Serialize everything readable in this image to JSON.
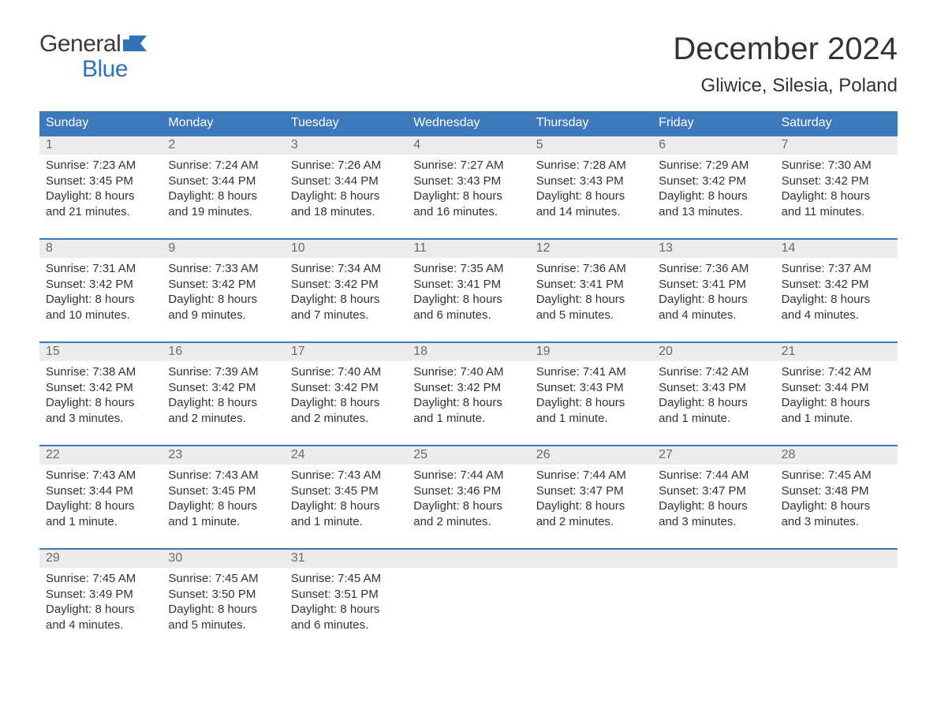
{
  "brand": {
    "top": "General",
    "bottom": "Blue"
  },
  "title": "December 2024",
  "location": "Gliwice, Silesia, Poland",
  "colors": {
    "header_bg": "#3e79bb",
    "header_text": "#ffffff",
    "daynum_bg": "#ececec",
    "daynum_text": "#6a6a6a",
    "week_border": "#3e79bb",
    "body_text": "#333333",
    "brand_blue": "#2f72b8",
    "background": "#ffffff"
  },
  "typography": {
    "title_fontsize": 40,
    "location_fontsize": 24,
    "dayheader_fontsize": 16,
    "daynum_fontsize": 16,
    "cell_fontsize": 15,
    "logo_fontsize": 30
  },
  "layout": {
    "columns": 7,
    "rows": 5
  },
  "day_labels": [
    "Sunday",
    "Monday",
    "Tuesday",
    "Wednesday",
    "Thursday",
    "Friday",
    "Saturday"
  ],
  "weeks": [
    [
      {
        "n": "1",
        "sunrise": "Sunrise: 7:23 AM",
        "sunset": "Sunset: 3:45 PM",
        "d1": "Daylight: 8 hours",
        "d2": "and 21 minutes."
      },
      {
        "n": "2",
        "sunrise": "Sunrise: 7:24 AM",
        "sunset": "Sunset: 3:44 PM",
        "d1": "Daylight: 8 hours",
        "d2": "and 19 minutes."
      },
      {
        "n": "3",
        "sunrise": "Sunrise: 7:26 AM",
        "sunset": "Sunset: 3:44 PM",
        "d1": "Daylight: 8 hours",
        "d2": "and 18 minutes."
      },
      {
        "n": "4",
        "sunrise": "Sunrise: 7:27 AM",
        "sunset": "Sunset: 3:43 PM",
        "d1": "Daylight: 8 hours",
        "d2": "and 16 minutes."
      },
      {
        "n": "5",
        "sunrise": "Sunrise: 7:28 AM",
        "sunset": "Sunset: 3:43 PM",
        "d1": "Daylight: 8 hours",
        "d2": "and 14 minutes."
      },
      {
        "n": "6",
        "sunrise": "Sunrise: 7:29 AM",
        "sunset": "Sunset: 3:42 PM",
        "d1": "Daylight: 8 hours",
        "d2": "and 13 minutes."
      },
      {
        "n": "7",
        "sunrise": "Sunrise: 7:30 AM",
        "sunset": "Sunset: 3:42 PM",
        "d1": "Daylight: 8 hours",
        "d2": "and 11 minutes."
      }
    ],
    [
      {
        "n": "8",
        "sunrise": "Sunrise: 7:31 AM",
        "sunset": "Sunset: 3:42 PM",
        "d1": "Daylight: 8 hours",
        "d2": "and 10 minutes."
      },
      {
        "n": "9",
        "sunrise": "Sunrise: 7:33 AM",
        "sunset": "Sunset: 3:42 PM",
        "d1": "Daylight: 8 hours",
        "d2": "and 9 minutes."
      },
      {
        "n": "10",
        "sunrise": "Sunrise: 7:34 AM",
        "sunset": "Sunset: 3:42 PM",
        "d1": "Daylight: 8 hours",
        "d2": "and 7 minutes."
      },
      {
        "n": "11",
        "sunrise": "Sunrise: 7:35 AM",
        "sunset": "Sunset: 3:41 PM",
        "d1": "Daylight: 8 hours",
        "d2": "and 6 minutes."
      },
      {
        "n": "12",
        "sunrise": "Sunrise: 7:36 AM",
        "sunset": "Sunset: 3:41 PM",
        "d1": "Daylight: 8 hours",
        "d2": "and 5 minutes."
      },
      {
        "n": "13",
        "sunrise": "Sunrise: 7:36 AM",
        "sunset": "Sunset: 3:41 PM",
        "d1": "Daylight: 8 hours",
        "d2": "and 4 minutes."
      },
      {
        "n": "14",
        "sunrise": "Sunrise: 7:37 AM",
        "sunset": "Sunset: 3:42 PM",
        "d1": "Daylight: 8 hours",
        "d2": "and 4 minutes."
      }
    ],
    [
      {
        "n": "15",
        "sunrise": "Sunrise: 7:38 AM",
        "sunset": "Sunset: 3:42 PM",
        "d1": "Daylight: 8 hours",
        "d2": "and 3 minutes."
      },
      {
        "n": "16",
        "sunrise": "Sunrise: 7:39 AM",
        "sunset": "Sunset: 3:42 PM",
        "d1": "Daylight: 8 hours",
        "d2": "and 2 minutes."
      },
      {
        "n": "17",
        "sunrise": "Sunrise: 7:40 AM",
        "sunset": "Sunset: 3:42 PM",
        "d1": "Daylight: 8 hours",
        "d2": "and 2 minutes."
      },
      {
        "n": "18",
        "sunrise": "Sunrise: 7:40 AM",
        "sunset": "Sunset: 3:42 PM",
        "d1": "Daylight: 8 hours",
        "d2": "and 1 minute."
      },
      {
        "n": "19",
        "sunrise": "Sunrise: 7:41 AM",
        "sunset": "Sunset: 3:43 PM",
        "d1": "Daylight: 8 hours",
        "d2": "and 1 minute."
      },
      {
        "n": "20",
        "sunrise": "Sunrise: 7:42 AM",
        "sunset": "Sunset: 3:43 PM",
        "d1": "Daylight: 8 hours",
        "d2": "and 1 minute."
      },
      {
        "n": "21",
        "sunrise": "Sunrise: 7:42 AM",
        "sunset": "Sunset: 3:44 PM",
        "d1": "Daylight: 8 hours",
        "d2": "and 1 minute."
      }
    ],
    [
      {
        "n": "22",
        "sunrise": "Sunrise: 7:43 AM",
        "sunset": "Sunset: 3:44 PM",
        "d1": "Daylight: 8 hours",
        "d2": "and 1 minute."
      },
      {
        "n": "23",
        "sunrise": "Sunrise: 7:43 AM",
        "sunset": "Sunset: 3:45 PM",
        "d1": "Daylight: 8 hours",
        "d2": "and 1 minute."
      },
      {
        "n": "24",
        "sunrise": "Sunrise: 7:43 AM",
        "sunset": "Sunset: 3:45 PM",
        "d1": "Daylight: 8 hours",
        "d2": "and 1 minute."
      },
      {
        "n": "25",
        "sunrise": "Sunrise: 7:44 AM",
        "sunset": "Sunset: 3:46 PM",
        "d1": "Daylight: 8 hours",
        "d2": "and 2 minutes."
      },
      {
        "n": "26",
        "sunrise": "Sunrise: 7:44 AM",
        "sunset": "Sunset: 3:47 PM",
        "d1": "Daylight: 8 hours",
        "d2": "and 2 minutes."
      },
      {
        "n": "27",
        "sunrise": "Sunrise: 7:44 AM",
        "sunset": "Sunset: 3:47 PM",
        "d1": "Daylight: 8 hours",
        "d2": "and 3 minutes."
      },
      {
        "n": "28",
        "sunrise": "Sunrise: 7:45 AM",
        "sunset": "Sunset: 3:48 PM",
        "d1": "Daylight: 8 hours",
        "d2": "and 3 minutes."
      }
    ],
    [
      {
        "n": "29",
        "sunrise": "Sunrise: 7:45 AM",
        "sunset": "Sunset: 3:49 PM",
        "d1": "Daylight: 8 hours",
        "d2": "and 4 minutes."
      },
      {
        "n": "30",
        "sunrise": "Sunrise: 7:45 AM",
        "sunset": "Sunset: 3:50 PM",
        "d1": "Daylight: 8 hours",
        "d2": "and 5 minutes."
      },
      {
        "n": "31",
        "sunrise": "Sunrise: 7:45 AM",
        "sunset": "Sunset: 3:51 PM",
        "d1": "Daylight: 8 hours",
        "d2": "and 6 minutes."
      },
      {
        "n": "",
        "sunrise": "",
        "sunset": "",
        "d1": "",
        "d2": ""
      },
      {
        "n": "",
        "sunrise": "",
        "sunset": "",
        "d1": "",
        "d2": ""
      },
      {
        "n": "",
        "sunrise": "",
        "sunset": "",
        "d1": "",
        "d2": ""
      },
      {
        "n": "",
        "sunrise": "",
        "sunset": "",
        "d1": "",
        "d2": ""
      }
    ]
  ]
}
